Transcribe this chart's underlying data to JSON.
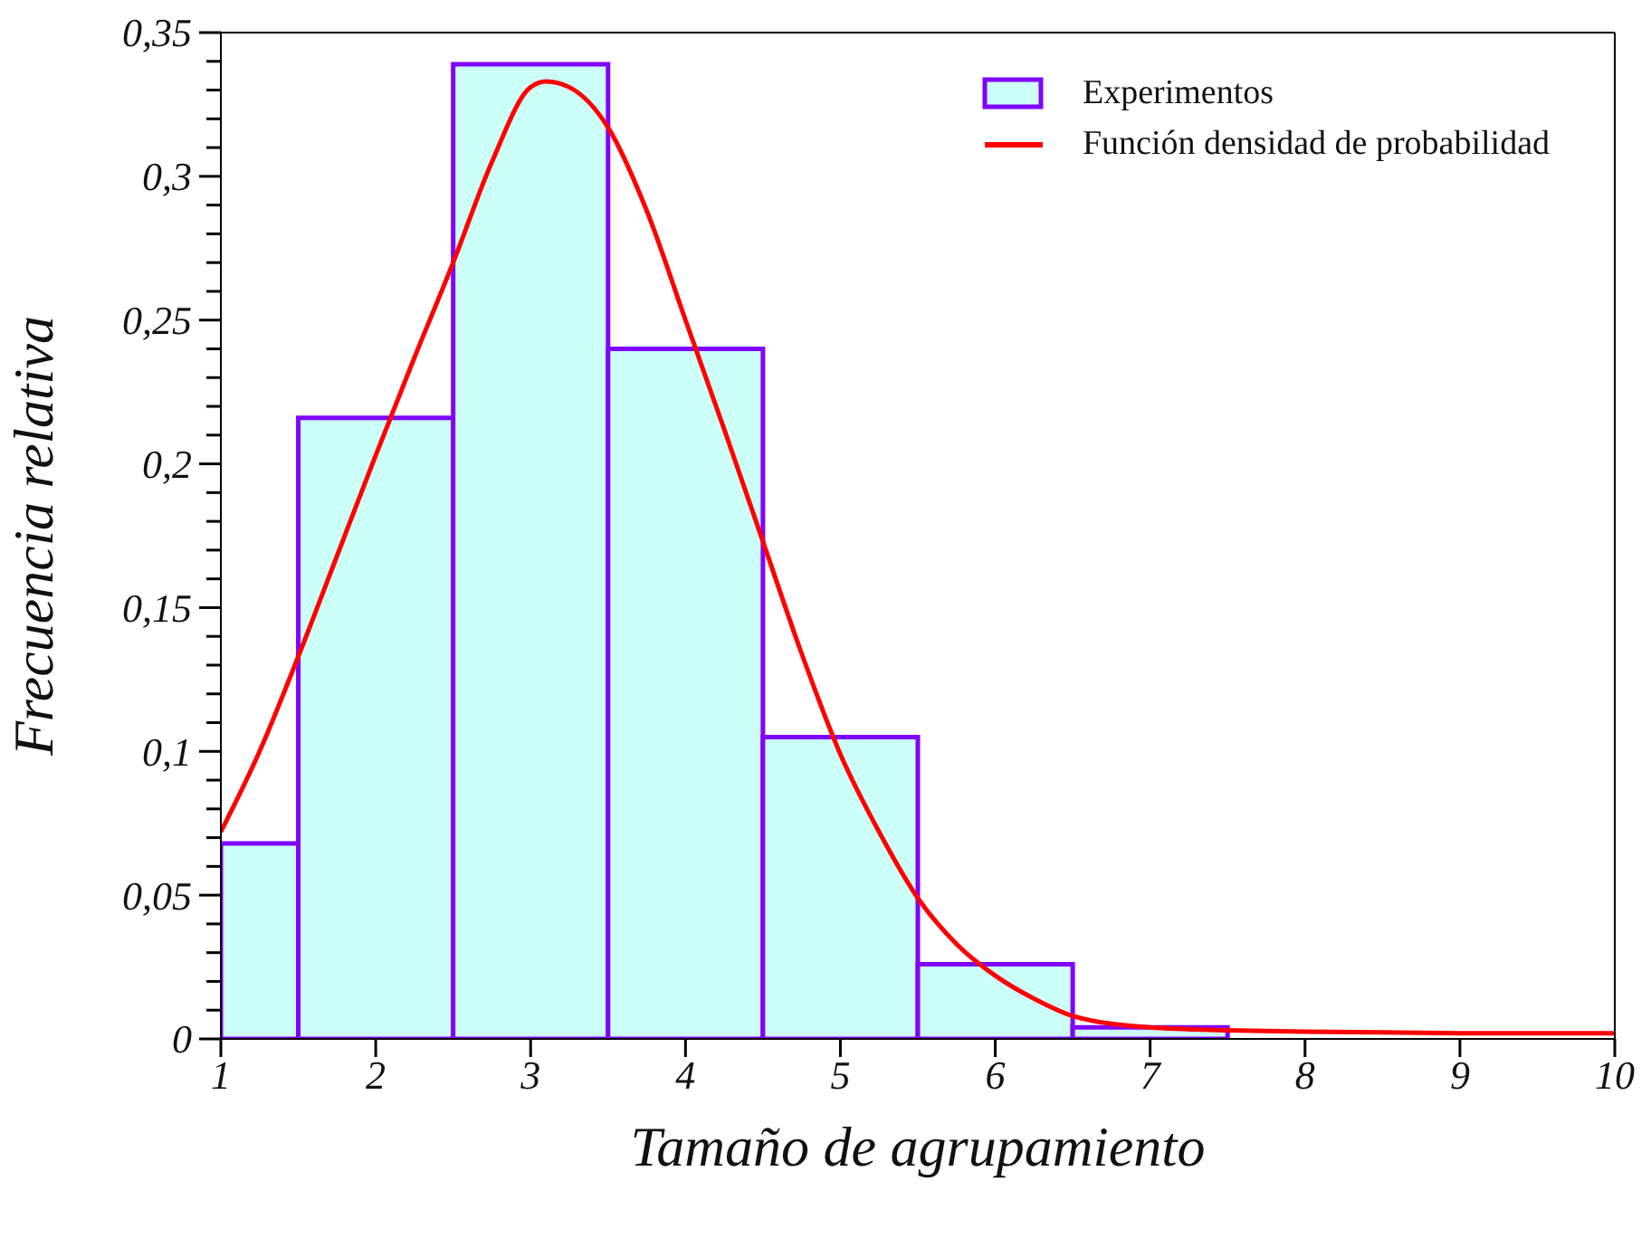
{
  "chart_data": {
    "type": "histogram",
    "xlabel": "Tamaño de agrupamiento",
    "ylabel": "Frecuencia relativa",
    "xlim": [
      1,
      10
    ],
    "xticks": [
      1,
      2,
      3,
      4,
      5,
      6,
      7,
      8,
      9,
      10
    ],
    "ylim": [
      0,
      0.35
    ],
    "yticks": [
      0,
      {
        "value": 0.01,
        "label": null
      },
      {
        "value": 0.02,
        "label": null
      },
      {
        "value": 0.03,
        "label": null
      },
      {
        "value": 0.04,
        "label": null
      },
      {
        "value": 0.05,
        "label": "0,05"
      },
      {
        "value": 0.06,
        "label": null
      },
      {
        "value": 0.07,
        "label": null
      },
      {
        "value": 0.08,
        "label": null
      },
      {
        "value": 0.09,
        "label": null
      },
      {
        "value": 0.1,
        "label": "0,1"
      },
      {
        "value": 0.11,
        "label": null
      },
      {
        "value": 0.12,
        "label": null
      },
      {
        "value": 0.13,
        "label": null
      },
      {
        "value": 0.14,
        "label": null
      },
      {
        "value": 0.15,
        "label": "0,15"
      },
      {
        "value": 0.16,
        "label": null
      },
      {
        "value": 0.17,
        "label": null
      },
      {
        "value": 0.18,
        "label": null
      },
      {
        "value": 0.19,
        "label": null
      },
      {
        "value": 0.2,
        "label": "0,2"
      },
      {
        "value": 0.21,
        "label": null
      },
      {
        "value": 0.22,
        "label": null
      },
      {
        "value": 0.23,
        "label": null
      },
      {
        "value": 0.24,
        "label": null
      },
      {
        "value": 0.25,
        "label": "0,25"
      },
      {
        "value": 0.26,
        "label": null
      },
      {
        "value": 0.27,
        "label": null
      },
      {
        "value": 0.28,
        "label": null
      },
      {
        "value": 0.29,
        "label": null
      },
      {
        "value": 0.3,
        "label": "0,3"
      },
      {
        "value": 0.31,
        "label": null
      },
      {
        "value": 0.32,
        "label": null
      },
      {
        "value": 0.33,
        "label": null
      },
      {
        "value": 0.34,
        "label": null
      },
      {
        "value": 0.35,
        "label": "0,35"
      }
    ],
    "grid": false,
    "legend": "top right",
    "series": [
      {
        "name": "Experimentos",
        "color": "#ccfff8",
        "bins": [
          1,
          1.5,
          2.5,
          3.5,
          4.5,
          5.5,
          6.5,
          7.5
        ],
        "values": [
          0.068,
          0.216,
          0.339,
          0.24,
          0.105,
          0.026,
          0.004
        ]
      },
      {
        "type": "line",
        "name": "Función densidad de probabilidad",
        "color": "#ff0000",
        "x": [
          1,
          1.25,
          1.5,
          1.75,
          2,
          2.25,
          2.5,
          2.75,
          3,
          3.1,
          3.25,
          3.5,
          3.75,
          4,
          4.25,
          4.5,
          4.75,
          5,
          5.25,
          5.5,
          5.75,
          6,
          6.25,
          6.5,
          7,
          7.5,
          8,
          9,
          10
        ],
        "values": [
          0.072,
          0.1,
          0.133,
          0.168,
          0.203,
          0.237,
          0.27,
          0.305,
          0.331,
          0.333,
          0.331,
          0.317,
          0.288,
          0.25,
          0.212,
          0.173,
          0.134,
          0.099,
          0.072,
          0.049,
          0.033,
          0.022,
          0.014,
          0.008,
          0.004,
          0.003,
          0.0025,
          0.002,
          0.002
        ]
      }
    ]
  }
}
